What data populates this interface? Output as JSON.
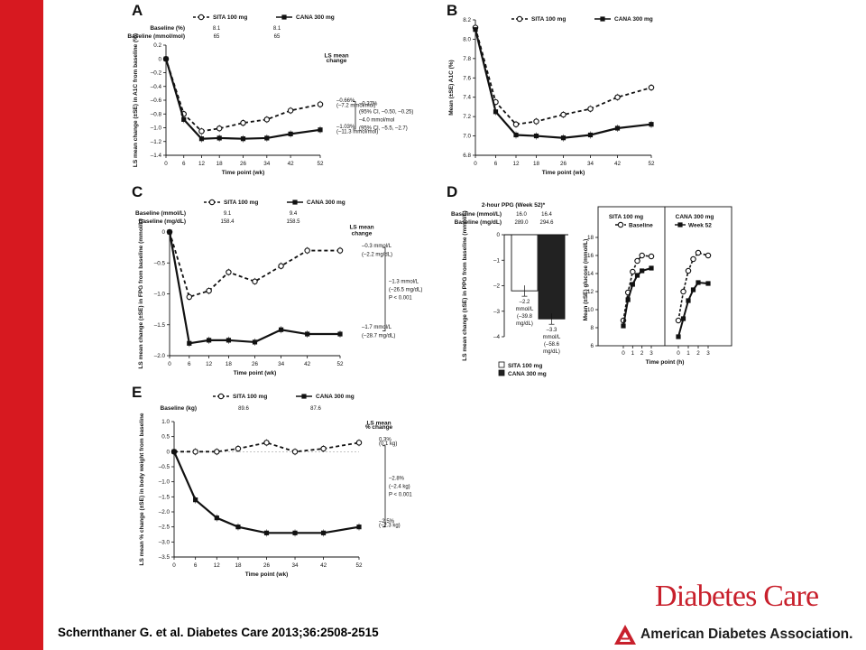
{
  "citation": "Schernthaner G. et al. Diabetes Care 2013;36:2508-2515",
  "journal_logo": "Diabetes Care",
  "association_logo": "American Diabetes Association.",
  "colors": {
    "side_bar": "#d71920",
    "journal": "#c8202c",
    "ada_text": "#1d1d1d"
  },
  "chart_data": [
    {
      "panel": "A",
      "type": "line",
      "legend": [
        "SITA 100 mg",
        "CANA 300 mg"
      ],
      "baseline_rows": [
        {
          "label": "Baseline (%)",
          "values": [
            "8.1",
            "8.1"
          ]
        },
        {
          "label": "Baseline (mmol/mol)",
          "values": [
            "65",
            "65"
          ]
        }
      ],
      "xlabel": "Time point (wk)",
      "ylabel": "LS mean change (±SE) in A1C from baseline (%)",
      "x": [
        0,
        6,
        12,
        18,
        26,
        34,
        42,
        52
      ],
      "xlim": [
        0,
        52
      ],
      "ylim": [
        -1.4,
        0.2
      ],
      "xticks": [
        "0",
        "6",
        "12",
        "18",
        "26",
        "34",
        "42",
        "52"
      ],
      "yticks": [
        "0.2",
        "0",
        "–0.2",
        "–0.4",
        "–0.6",
        "–0.8",
        "–1.0",
        "–1.2",
        "–1.4"
      ],
      "series": [
        {
          "name": "SITA 100 mg",
          "values": [
            0,
            -0.8,
            -1.05,
            -1.01,
            -0.93,
            -0.88,
            -0.75,
            -0.66
          ]
        },
        {
          "name": "CANA 300 mg",
          "values": [
            0,
            -0.88,
            -1.16,
            -1.15,
            -1.16,
            -1.15,
            -1.09,
            -1.03
          ]
        }
      ],
      "end_labels": [
        {
          "text": "LS mean",
          "anchor": 0.05
        },
        {
          "text": "change",
          "anchor": -0.02
        },
        {
          "text": "–0.66%",
          "anchor": -0.6
        },
        {
          "text": "(–7.2 mmol/mol)",
          "anchor": -0.67
        },
        {
          "text": "–1.03%",
          "anchor": -0.98
        },
        {
          "text": "(–11.3 mmol/mol)",
          "anchor": -1.05
        }
      ],
      "comparison": [
        "–0.37%",
        "(95% CI, –0.50, –0.25)",
        "–4.0 mmol/mol",
        "(95% CI, –5.5, –2.7)"
      ]
    },
    {
      "panel": "B",
      "type": "line",
      "legend": [
        "SITA 100 mg",
        "CANA 300 mg"
      ],
      "xlabel": "Time point (wk)",
      "ylabel": "Mean (±SE) A1C (%)",
      "x": [
        0,
        6,
        12,
        18,
        26,
        34,
        42,
        52
      ],
      "xlim": [
        0,
        52
      ],
      "ylim": [
        6.8,
        8.2
      ],
      "xticks": [
        "0",
        "6",
        "12",
        "18",
        "26",
        "34",
        "42",
        "52"
      ],
      "yticks": [
        "8.2",
        "8.0",
        "7.8",
        "7.6",
        "7.4",
        "7.2",
        "7.0",
        "6.8"
      ],
      "series": [
        {
          "name": "SITA 100 mg",
          "values": [
            8.12,
            7.35,
            7.12,
            7.15,
            7.22,
            7.28,
            7.4,
            7.5
          ]
        },
        {
          "name": "CANA 300 mg",
          "values": [
            8.1,
            7.25,
            7.01,
            7.0,
            6.98,
            7.01,
            7.08,
            7.12
          ]
        }
      ]
    },
    {
      "panel": "C",
      "type": "line",
      "legend": [
        "SITA 100 mg",
        "CANA 300 mg"
      ],
      "baseline_rows": [
        {
          "label": "Baseline (mmol/L)",
          "values": [
            "9.1",
            "9.4"
          ]
        },
        {
          "label": "Baseline (mg/dL)",
          "values": [
            "158.4",
            "158.5"
          ]
        }
      ],
      "xlabel": "Time point (wk)",
      "ylabel": "LS mean change (±SE) in FPG from baseline (mmol/L)",
      "x": [
        0,
        6,
        12,
        18,
        26,
        34,
        42,
        52
      ],
      "xlim": [
        0,
        52
      ],
      "ylim": [
        -2.0,
        0
      ],
      "xticks": [
        "0",
        "6",
        "12",
        "18",
        "26",
        "34",
        "42",
        "52"
      ],
      "yticks": [
        "0",
        "–0.5",
        "–1.0",
        "–1.5",
        "–2.0"
      ],
      "series": [
        {
          "name": "SITA 100 mg",
          "values": [
            0,
            -1.05,
            -0.95,
            -0.65,
            -0.8,
            -0.55,
            -0.3,
            -0.3
          ]
        },
        {
          "name": "CANA 300 mg",
          "values": [
            0,
            -1.8,
            -1.75,
            -1.75,
            -1.78,
            -1.58,
            -1.65,
            -1.65
          ]
        }
      ],
      "end_labels": [
        {
          "text": "LS mean",
          "anchor": 0.08
        },
        {
          "text": "change",
          "anchor": -0.02
        },
        {
          "text": "–0.3 mmol/L",
          "anchor": -0.22
        },
        {
          "text": "(–2.2 mg/dL)",
          "anchor": -0.36
        },
        {
          "text": "–1.7 mmol/L",
          "anchor": -1.53
        },
        {
          "text": "(–28.7 mg/dL)",
          "anchor": -1.67
        }
      ],
      "comparison": [
        "–1.3 mmol/L",
        "(–26.5 mg/dL)",
        "P < 0.001"
      ]
    },
    {
      "panel": "D",
      "type": "bar",
      "title": "2-hour PPG (Week 52)*",
      "baseline_rows": [
        {
          "label": "Baseline (mmol/L)",
          "values": [
            "16.0",
            "16.4"
          ]
        },
        {
          "label": "Baseline (mg/dL)",
          "values": [
            "289.0",
            "294.6"
          ]
        }
      ],
      "ylabel": "LS mean change (±SE) in PPG from baseline (mmol/L)",
      "categories": [
        "SITA 100 mg",
        "CANA 300 mg"
      ],
      "values": [
        -2.2,
        -3.3
      ],
      "ylim": [
        -4,
        0
      ],
      "yticks": [
        "0",
        "–1",
        "–2",
        "–3",
        "–4"
      ],
      "bar_labels": [
        [
          "–2.2",
          "mmol/L",
          "(–39.8",
          "mg/dL)"
        ],
        [
          "–3.3",
          "mmol/L",
          "(–58.6",
          "mg/dL)"
        ]
      ],
      "legend": [
        "SITA 100 mg",
        "CANA 300 mg"
      ]
    },
    {
      "panel": "D-inset",
      "type": "line",
      "panel_titles": [
        "SITA 100 mg",
        "CANA 300 mg"
      ],
      "legend": [
        "Baseline",
        "Week 52"
      ],
      "xlabel": "Time point (h)",
      "ylabel": "Mean (±SE) glucose (mmol/L)",
      "x": [
        0,
        0.5,
        1,
        1.5,
        2,
        3
      ],
      "xlim": [
        0,
        3
      ],
      "ylim": [
        6,
        18
      ],
      "xticks": [
        "0",
        "1",
        "2",
        "3"
      ],
      "yticks": [
        "18",
        "16",
        "14",
        "12",
        "10",
        "8",
        "6"
      ],
      "subplots": [
        {
          "name": "SITA 100 mg",
          "series": [
            {
              "name": "Baseline",
              "values": [
                8.8,
                11.9,
                14.2,
                15.4,
                16.0,
                15.9
              ]
            },
            {
              "name": "Week 52",
              "values": [
                8.2,
                11.1,
                12.8,
                13.8,
                14.3,
                14.6
              ]
            }
          ]
        },
        {
          "name": "CANA 300 mg",
          "series": [
            {
              "name": "Baseline",
              "values": [
                8.8,
                12.0,
                14.3,
                15.6,
                16.3,
                16.0
              ]
            },
            {
              "name": "Week 52",
              "values": [
                7.0,
                9.0,
                11.0,
                12.2,
                13.0,
                12.9
              ]
            }
          ]
        }
      ]
    },
    {
      "panel": "E",
      "type": "line",
      "legend": [
        "SITA 100 mg",
        "CANA 300 mg"
      ],
      "baseline_rows": [
        {
          "label": "Baseline (kg)",
          "values": [
            "89.6",
            "87.6"
          ]
        }
      ],
      "xlabel": "Time point (wk)",
      "ylabel": "LS mean % change (±SE) in body weight from baseline",
      "x": [
        0,
        6,
        12,
        18,
        26,
        34,
        42,
        52
      ],
      "xlim": [
        0,
        52
      ],
      "ylim": [
        -3.5,
        1.0
      ],
      "xticks": [
        "0",
        "6",
        "12",
        "18",
        "26",
        "34",
        "42",
        "52"
      ],
      "yticks": [
        "1.0",
        "0.5",
        "0",
        "–0.5",
        "–1.0",
        "–1.5",
        "–2.0",
        "–2.5",
        "–3.0",
        "–3.5"
      ],
      "series": [
        {
          "name": "SITA 100 mg",
          "values": [
            0,
            0,
            0,
            0.1,
            0.3,
            0,
            0.1,
            0.3
          ]
        },
        {
          "name": "CANA 300 mg",
          "values": [
            0,
            -1.6,
            -2.2,
            -2.5,
            -2.7,
            -2.7,
            -2.7,
            -2.5
          ]
        }
      ],
      "end_labels": [
        {
          "text": "LS mean",
          "anchor": 0.95
        },
        {
          "text": "% change",
          "anchor": 0.82
        },
        {
          "text": "0.3%",
          "anchor": 0.42
        },
        {
          "text": "(0.1 kg)",
          "anchor": 0.28
        },
        {
          "text": "–2.5%",
          "anchor": -2.3
        },
        {
          "text": "(–2.3 kg)",
          "anchor": -2.44
        }
      ],
      "comparison": [
        "–2.8%",
        "(–2.4 kg)",
        "P < 0.001"
      ]
    }
  ]
}
